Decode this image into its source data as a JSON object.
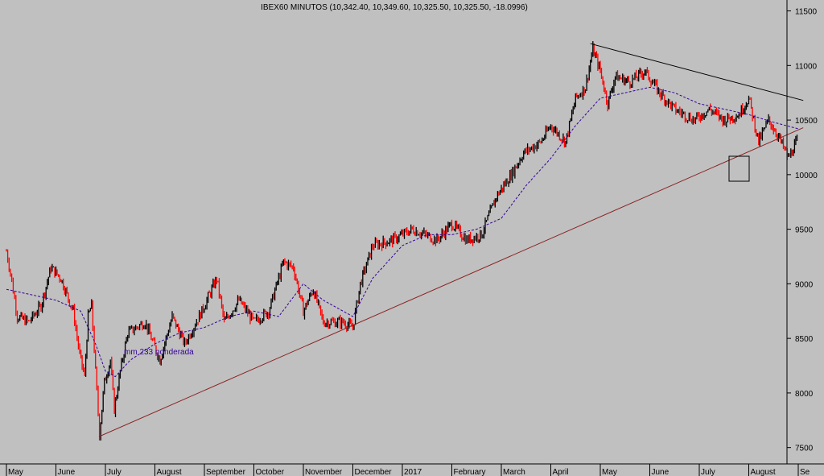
{
  "chart_data": {
    "type": "candlestick",
    "title": "IBEX60 MINUTOS (10,342.40, 10,349.60, 10,325.50, 10,325.50, -18.0996)",
    "ylim": [
      7350,
      11600
    ],
    "y_ticks": [
      7500,
      8000,
      8500,
      9000,
      9500,
      10000,
      10500,
      11000,
      11500
    ],
    "x_ticks": [
      {
        "label": "May",
        "m": 0
      },
      {
        "label": "June",
        "m": 1
      },
      {
        "label": "July",
        "m": 2
      },
      {
        "label": "August",
        "m": 3
      },
      {
        "label": "September",
        "m": 4
      },
      {
        "label": "October",
        "m": 5
      },
      {
        "label": "November",
        "m": 6
      },
      {
        "label": "December",
        "m": 7
      },
      {
        "label": "2017",
        "m": 8
      },
      {
        "label": "February",
        "m": 9
      },
      {
        "label": "March",
        "m": 10
      },
      {
        "label": "April",
        "m": 11
      },
      {
        "label": "May",
        "m": 12
      },
      {
        "label": "June",
        "m": 13
      },
      {
        "label": "July",
        "m": 14
      },
      {
        "label": "August",
        "m": 15
      },
      {
        "label": "Se",
        "m": 16
      }
    ],
    "price": [
      {
        "m": 0.0,
        "v": 9300
      },
      {
        "m": 0.08,
        "v": 9100
      },
      {
        "m": 0.22,
        "v": 8700
      },
      {
        "m": 0.45,
        "v": 8650
      },
      {
        "m": 0.7,
        "v": 8800
      },
      {
        "m": 0.9,
        "v": 9150
      },
      {
        "m": 1.1,
        "v": 9050
      },
      {
        "m": 1.35,
        "v": 8750
      },
      {
        "m": 1.48,
        "v": 8350
      },
      {
        "m": 1.58,
        "v": 8150
      },
      {
        "m": 1.65,
        "v": 8700
      },
      {
        "m": 1.72,
        "v": 8800
      },
      {
        "m": 1.8,
        "v": 8200
      },
      {
        "m": 1.88,
        "v": 7620
      },
      {
        "m": 1.98,
        "v": 8100
      },
      {
        "m": 2.1,
        "v": 8300
      },
      {
        "m": 2.18,
        "v": 7850
      },
      {
        "m": 2.3,
        "v": 8200
      },
      {
        "m": 2.45,
        "v": 8550
      },
      {
        "m": 2.8,
        "v": 8650
      },
      {
        "m": 3.1,
        "v": 8300
      },
      {
        "m": 3.35,
        "v": 8700
      },
      {
        "m": 3.6,
        "v": 8450
      },
      {
        "m": 3.95,
        "v": 8750
      },
      {
        "m": 4.25,
        "v": 9050
      },
      {
        "m": 4.4,
        "v": 8650
      },
      {
        "m": 4.7,
        "v": 8850
      },
      {
        "m": 5.0,
        "v": 8650
      },
      {
        "m": 5.3,
        "v": 8750
      },
      {
        "m": 5.6,
        "v": 9200
      },
      {
        "m": 5.8,
        "v": 9150
      },
      {
        "m": 6.0,
        "v": 8750
      },
      {
        "m": 6.2,
        "v": 8950
      },
      {
        "m": 6.4,
        "v": 8650
      },
      {
        "m": 6.8,
        "v": 8650
      },
      {
        "m": 7.0,
        "v": 8600
      },
      {
        "m": 7.15,
        "v": 9000
      },
      {
        "m": 7.4,
        "v": 9350
      },
      {
        "m": 7.8,
        "v": 9400
      },
      {
        "m": 8.2,
        "v": 9500
      },
      {
        "m": 8.7,
        "v": 9400
      },
      {
        "m": 9.0,
        "v": 9550
      },
      {
        "m": 9.3,
        "v": 9400
      },
      {
        "m": 9.6,
        "v": 9450
      },
      {
        "m": 9.9,
        "v": 9800
      },
      {
        "m": 10.2,
        "v": 10000
      },
      {
        "m": 10.45,
        "v": 10200
      },
      {
        "m": 10.8,
        "v": 10300
      },
      {
        "m": 11.0,
        "v": 10450
      },
      {
        "m": 11.3,
        "v": 10300
      },
      {
        "m": 11.5,
        "v": 10700
      },
      {
        "m": 11.7,
        "v": 10800
      },
      {
        "m": 11.85,
        "v": 11150
      },
      {
        "m": 12.0,
        "v": 10950
      },
      {
        "m": 12.15,
        "v": 10650
      },
      {
        "m": 12.3,
        "v": 10900
      },
      {
        "m": 12.6,
        "v": 10850
      },
      {
        "m": 12.9,
        "v": 10950
      },
      {
        "m": 13.2,
        "v": 10750
      },
      {
        "m": 13.5,
        "v": 10600
      },
      {
        "m": 13.9,
        "v": 10500
      },
      {
        "m": 14.2,
        "v": 10600
      },
      {
        "m": 14.5,
        "v": 10500
      },
      {
        "m": 14.8,
        "v": 10550
      },
      {
        "m": 15.0,
        "v": 10700
      },
      {
        "m": 15.2,
        "v": 10300
      },
      {
        "m": 15.4,
        "v": 10500
      },
      {
        "m": 15.6,
        "v": 10350
      },
      {
        "m": 15.8,
        "v": 10150
      },
      {
        "m": 16.0,
        "v": 10330
      }
    ],
    "moving_average": {
      "label": "mm 233 ponderada",
      "points": [
        {
          "m": 0.0,
          "v": 8950
        },
        {
          "m": 0.5,
          "v": 8900
        },
        {
          "m": 1.0,
          "v": 8850
        },
        {
          "m": 1.5,
          "v": 8750
        },
        {
          "m": 1.8,
          "v": 8450
        },
        {
          "m": 2.0,
          "v": 8200
        },
        {
          "m": 2.2,
          "v": 8150
        },
        {
          "m": 2.5,
          "v": 8300
        },
        {
          "m": 3.0,
          "v": 8450
        },
        {
          "m": 3.5,
          "v": 8550
        },
        {
          "m": 4.0,
          "v": 8600
        },
        {
          "m": 4.5,
          "v": 8700
        },
        {
          "m": 5.0,
          "v": 8750
        },
        {
          "m": 5.5,
          "v": 8700
        },
        {
          "m": 6.0,
          "v": 9000
        },
        {
          "m": 6.4,
          "v": 8850
        },
        {
          "m": 7.0,
          "v": 8700
        },
        {
          "m": 7.4,
          "v": 9050
        },
        {
          "m": 8.0,
          "v": 9350
        },
        {
          "m": 8.5,
          "v": 9450
        },
        {
          "m": 9.0,
          "v": 9450
        },
        {
          "m": 9.5,
          "v": 9500
        },
        {
          "m": 10.0,
          "v": 9600
        },
        {
          "m": 10.5,
          "v": 9900
        },
        {
          "m": 11.0,
          "v": 10150
        },
        {
          "m": 11.5,
          "v": 10450
        },
        {
          "m": 12.0,
          "v": 10700
        },
        {
          "m": 12.5,
          "v": 10750
        },
        {
          "m": 13.0,
          "v": 10800
        },
        {
          "m": 13.5,
          "v": 10750
        },
        {
          "m": 14.0,
          "v": 10650
        },
        {
          "m": 14.5,
          "v": 10600
        },
        {
          "m": 15.0,
          "v": 10550
        },
        {
          "m": 15.5,
          "v": 10480
        },
        {
          "m": 16.0,
          "v": 10420
        }
      ]
    },
    "trendlines": [
      {
        "from": {
          "m": 1.87,
          "v": 7600
        },
        "to": {
          "m": 16.1,
          "v": 10430
        },
        "color": "#8b2323"
      },
      {
        "from": {
          "m": 11.8,
          "v": 11200
        },
        "to": {
          "m": 16.1,
          "v": 10680
        },
        "color": "#000000"
      }
    ],
    "colors": {
      "background": "#c0c0c0",
      "up": "#000000",
      "down": "#ff0000",
      "average": "#330099"
    }
  }
}
